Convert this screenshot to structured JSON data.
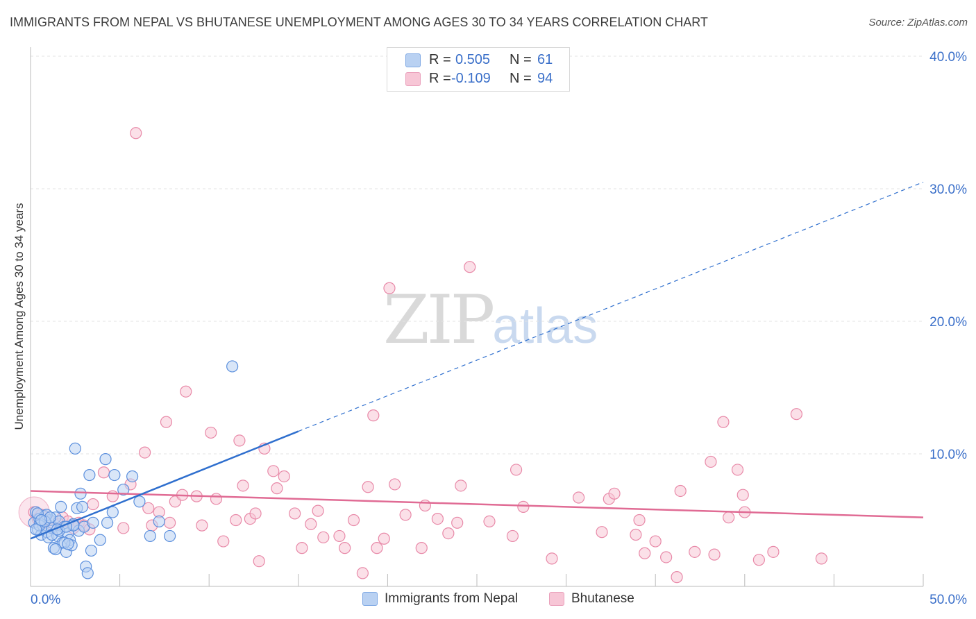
{
  "title": "IMMIGRANTS FROM NEPAL VS BHUTANESE UNEMPLOYMENT AMONG AGES 30 TO 34 YEARS CORRELATION CHART",
  "source": "Source: ZipAtlas.com",
  "watermark": {
    "zip": "ZIP",
    "atlas": "atlas"
  },
  "colors": {
    "blue": "#5b8fdd",
    "blue_fill": "#b9d1f2",
    "blue_line": "#2f6fce",
    "pink": "#e889a8",
    "pink_fill": "#f7c6d6",
    "pink_line": "#e06b94",
    "axis_text": "#3a6fc9",
    "grid": "#e3e3e3"
  },
  "legend": {
    "rows": [
      {
        "r_label": "R =",
        "r_value": "0.505",
        "n_label": "N =",
        "n_value": "61"
      },
      {
        "r_label": "R =",
        "r_value": "-0.109",
        "n_label": "N =",
        "n_value": "94"
      }
    ]
  },
  "bottom_legend": {
    "series1": "Immigrants from Nepal",
    "series2": "Bhutanese"
  },
  "chart_data": {
    "type": "scatter",
    "title": "IMMIGRANTS FROM NEPAL VS BHUTANESE UNEMPLOYMENT AMONG AGES 30 TO 34 YEARS CORRELATION CHART",
    "xlabel": "",
    "ylabel": "Unemployment Among Ages 30 to 34 years",
    "xlim": [
      0,
      50
    ],
    "ylim": [
      0,
      40
    ],
    "x_tick_labels": [
      "0.0%",
      "50.0%"
    ],
    "y_ticks": [
      10,
      20,
      30,
      40
    ],
    "y_tick_labels": [
      "10.0%",
      "20.0%",
      "30.0%",
      "40.0%"
    ],
    "grid": true,
    "series": [
      {
        "name": "Immigrants from Nepal",
        "R": 0.505,
        "N": 61,
        "trend_solid": [
          [
            0,
            3.6
          ],
          [
            15,
            11.7
          ]
        ],
        "trend_dashed": [
          [
            15,
            11.7
          ],
          [
            50,
            30.5
          ]
        ],
        "points": [
          [
            0.2,
            4.8
          ],
          [
            0.3,
            5.6
          ],
          [
            0.4,
            4.3
          ],
          [
            0.5,
            5.1
          ],
          [
            0.6,
            3.9
          ],
          [
            0.7,
            4.6
          ],
          [
            0.8,
            5.3
          ],
          [
            0.9,
            4.1
          ],
          [
            1.0,
            3.7
          ],
          [
            1.1,
            5.0
          ],
          [
            1.2,
            4.4
          ],
          [
            1.3,
            2.9
          ],
          [
            1.4,
            5.2
          ],
          [
            1.5,
            3.8
          ],
          [
            1.6,
            4.9
          ],
          [
            1.7,
            6.0
          ],
          [
            1.8,
            3.3
          ],
          [
            1.9,
            4.5
          ],
          [
            2.0,
            2.6
          ],
          [
            2.1,
            4.0
          ],
          [
            2.2,
            3.5
          ],
          [
            2.3,
            3.1
          ],
          [
            2.4,
            4.7
          ],
          [
            2.5,
            10.4
          ],
          [
            2.6,
            5.9
          ],
          [
            2.7,
            4.2
          ],
          [
            2.8,
            7.0
          ],
          [
            2.9,
            6.0
          ],
          [
            3.0,
            4.5
          ],
          [
            3.1,
            1.5
          ],
          [
            3.2,
            1.0
          ],
          [
            3.3,
            8.4
          ],
          [
            3.4,
            2.7
          ],
          [
            3.5,
            4.8
          ],
          [
            3.9,
            3.5
          ],
          [
            4.2,
            9.6
          ],
          [
            4.3,
            4.8
          ],
          [
            4.6,
            5.6
          ],
          [
            4.7,
            8.4
          ],
          [
            5.2,
            7.3
          ],
          [
            5.7,
            8.3
          ],
          [
            6.1,
            6.4
          ],
          [
            6.7,
            3.8
          ],
          [
            7.2,
            4.9
          ],
          [
            7.8,
            3.8
          ],
          [
            11.3,
            16.6
          ],
          [
            0.5,
            4.6
          ],
          [
            0.9,
            5.4
          ],
          [
            1.2,
            3.9
          ],
          [
            1.6,
            4.2
          ],
          [
            1.9,
            3.3
          ],
          [
            2.1,
            3.2
          ],
          [
            0.4,
            5.5
          ],
          [
            0.8,
            4.9
          ],
          [
            1.1,
            5.2
          ],
          [
            1.5,
            4.3
          ],
          [
            2.4,
            4.6
          ],
          [
            0.3,
            4.3
          ],
          [
            0.6,
            5.0
          ],
          [
            1.4,
            2.8
          ],
          [
            2.0,
            4.5
          ]
        ]
      },
      {
        "name": "Bhutanese",
        "R": -0.109,
        "N": 94,
        "trend_solid": [
          [
            0,
            7.2
          ],
          [
            50,
            5.2
          ]
        ],
        "points": [
          [
            0.2,
            5.6
          ],
          [
            0.4,
            5.1
          ],
          [
            0.6,
            5.4
          ],
          [
            0.8,
            4.8
          ],
          [
            1.0,
            5.0
          ],
          [
            1.3,
            4.4
          ],
          [
            1.6,
            4.7
          ],
          [
            1.8,
            5.2
          ],
          [
            2.1,
            4.9
          ],
          [
            2.4,
            4.4
          ],
          [
            2.7,
            4.8
          ],
          [
            3.0,
            4.6
          ],
          [
            3.3,
            4.3
          ],
          [
            3.5,
            6.2
          ],
          [
            4.1,
            8.6
          ],
          [
            4.6,
            6.8
          ],
          [
            5.2,
            4.4
          ],
          [
            5.6,
            7.7
          ],
          [
            5.9,
            34.2
          ],
          [
            6.4,
            10.1
          ],
          [
            6.6,
            5.9
          ],
          [
            6.8,
            4.6
          ],
          [
            7.2,
            5.6
          ],
          [
            7.6,
            12.4
          ],
          [
            7.8,
            4.8
          ],
          [
            8.1,
            6.4
          ],
          [
            8.5,
            6.9
          ],
          [
            8.7,
            14.7
          ],
          [
            9.3,
            6.8
          ],
          [
            9.6,
            4.6
          ],
          [
            10.1,
            11.6
          ],
          [
            10.4,
            6.6
          ],
          [
            10.8,
            3.4
          ],
          [
            11.5,
            5.0
          ],
          [
            11.7,
            11.0
          ],
          [
            11.9,
            7.6
          ],
          [
            12.3,
            5.1
          ],
          [
            12.6,
            5.5
          ],
          [
            12.8,
            1.9
          ],
          [
            13.1,
            10.4
          ],
          [
            13.6,
            8.7
          ],
          [
            13.8,
            7.4
          ],
          [
            14.2,
            8.3
          ],
          [
            14.8,
            5.5
          ],
          [
            15.2,
            2.9
          ],
          [
            15.7,
            4.7
          ],
          [
            16.1,
            5.7
          ],
          [
            16.4,
            3.7
          ],
          [
            17.3,
            3.8
          ],
          [
            17.6,
            2.9
          ],
          [
            18.1,
            5.0
          ],
          [
            18.6,
            1.0
          ],
          [
            18.9,
            7.5
          ],
          [
            19.2,
            12.9
          ],
          [
            19.4,
            2.9
          ],
          [
            19.8,
            3.6
          ],
          [
            20.1,
            22.5
          ],
          [
            20.4,
            7.7
          ],
          [
            21.0,
            5.4
          ],
          [
            21.9,
            2.9
          ],
          [
            22.1,
            6.1
          ],
          [
            22.8,
            5.1
          ],
          [
            23.4,
            4.0
          ],
          [
            23.9,
            4.8
          ],
          [
            24.1,
            7.6
          ],
          [
            24.6,
            24.1
          ],
          [
            25.7,
            4.9
          ],
          [
            27.0,
            3.8
          ],
          [
            27.2,
            8.8
          ],
          [
            27.6,
            6.0
          ],
          [
            29.2,
            2.1
          ],
          [
            30.7,
            6.7
          ],
          [
            32.0,
            4.1
          ],
          [
            32.4,
            6.6
          ],
          [
            32.7,
            7.0
          ],
          [
            33.9,
            3.9
          ],
          [
            34.1,
            5.0
          ],
          [
            34.4,
            2.5
          ],
          [
            35.0,
            3.4
          ],
          [
            35.6,
            2.2
          ],
          [
            36.2,
            0.7
          ],
          [
            36.4,
            7.2
          ],
          [
            37.2,
            2.6
          ],
          [
            38.1,
            9.4
          ],
          [
            38.3,
            2.4
          ],
          [
            38.8,
            12.4
          ],
          [
            39.1,
            5.2
          ],
          [
            39.6,
            8.8
          ],
          [
            39.9,
            6.9
          ],
          [
            40.0,
            5.6
          ],
          [
            40.8,
            2.0
          ],
          [
            41.6,
            2.6
          ],
          [
            42.9,
            13.0
          ],
          [
            44.3,
            2.1
          ]
        ]
      }
    ]
  }
}
